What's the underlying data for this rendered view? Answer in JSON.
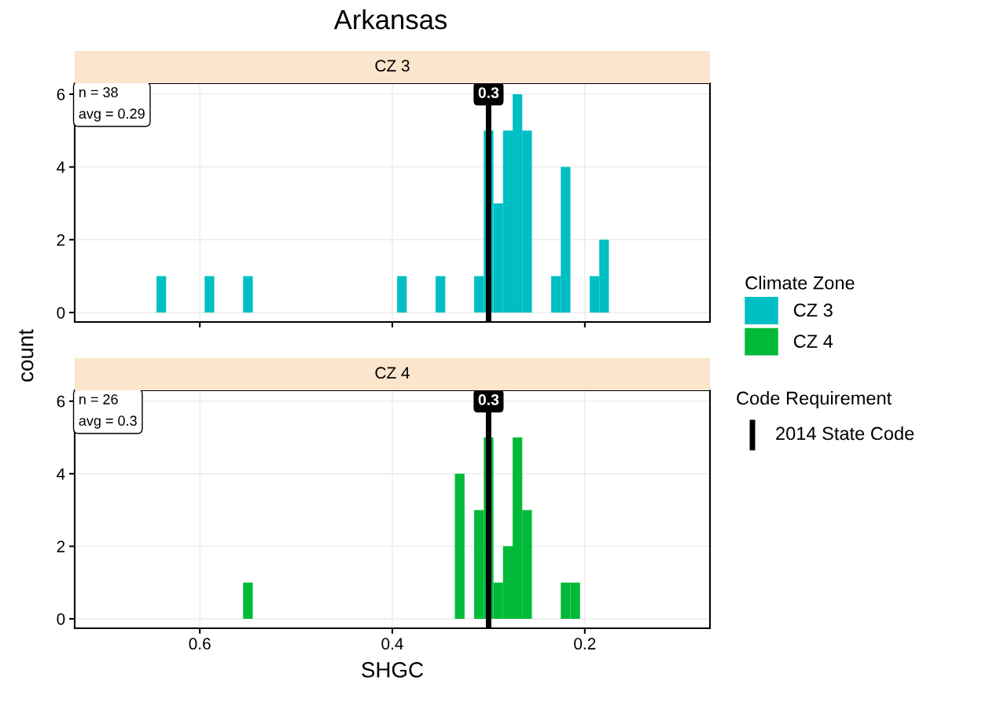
{
  "chart_data": [
    {
      "type": "histogram",
      "title": "Arkansas",
      "subtitle": "CZ 3",
      "ylabel": "count",
      "legend_title": "Climate Zone",
      "legend": "right",
      "grid": true,
      "tick_labels": "y",
      "bins": [
        0.175,
        0.185,
        0.195,
        0.205,
        0.215,
        0.225,
        0.235,
        0.245,
        0.255,
        0.265,
        0.275,
        0.285,
        0.295,
        0.305,
        0.315,
        0.325,
        0.335,
        0.345,
        0.355,
        0.365,
        0.375,
        0.385,
        0.395,
        0.405,
        0.415,
        0.425,
        0.435,
        0.445,
        0.455,
        0.465,
        0.475,
        0.485,
        0.495,
        0.505,
        0.515,
        0.525,
        0.535,
        0.545,
        0.555,
        0.565,
        0.575,
        0.585,
        0.595,
        0.605,
        0.615,
        0.625,
        0.635,
        0.645
      ],
      "series": [
        {
          "name": "CZ 3",
          "color": "#00bfc4",
          "values": [
            2,
            1,
            0,
            0,
            4,
            1,
            0,
            0,
            5,
            6,
            5,
            3,
            5,
            1,
            0,
            0,
            0,
            1,
            0,
            0,
            0,
            1,
            0,
            0,
            0,
            0,
            0,
            0,
            0,
            0,
            0,
            0,
            0,
            0,
            0,
            0,
            0,
            1,
            0,
            0,
            0,
            1,
            0,
            0,
            0,
            0,
            1
          ]
        }
      ],
      "xlim": [
        0.73,
        0.07
      ],
      "xticks": [
        0.6,
        0.4,
        0.2
      ],
      "ylim": [
        -0.26,
        6.3
      ],
      "yticks": [
        0,
        2,
        4,
        6
      ],
      "ref_lines": [
        {
          "axis": "x",
          "value": 0.3,
          "label": "0.3",
          "color": "#000000"
        }
      ],
      "annotations": [
        "n = 38\navg = 0.29",
        "Code Requirement",
        "2014 State Code"
      ]
    },
    {
      "type": "histogram",
      "subtitle": "CZ 4",
      "xlabel": "SHGC",
      "grid": true,
      "bins": [
        0.205,
        0.215,
        0.225,
        0.235,
        0.245,
        0.255,
        0.265,
        0.275,
        0.285,
        0.295,
        0.305,
        0.315,
        0.325,
        0.335,
        0.345,
        0.355,
        0.365,
        0.375,
        0.385,
        0.395,
        0.405,
        0.415,
        0.425,
        0.435,
        0.445,
        0.455,
        0.465,
        0.475,
        0.485,
        0.495,
        0.505,
        0.515,
        0.525,
        0.535,
        0.545,
        0.555
      ],
      "series": [
        {
          "name": "CZ 4",
          "color": "#00ba38",
          "values": [
            1,
            1,
            0,
            0,
            0,
            3,
            5,
            2,
            1,
            5,
            3,
            0,
            4,
            0,
            0,
            0,
            0,
            0,
            0,
            0,
            0,
            0,
            0,
            0,
            0,
            0,
            0,
            0,
            0,
            0,
            0,
            0,
            0,
            0,
            1
          ]
        }
      ],
      "xlim": [
        0.73,
        0.07
      ],
      "xticks": [
        0.6,
        0.4,
        0.2
      ],
      "ylim": [
        -0.26,
        6.3
      ],
      "yticks": [
        0,
        2,
        4,
        6
      ],
      "ref_lines": [
        {
          "axis": "x",
          "value": 0.3,
          "label": "0.3",
          "color": "#000000"
        }
      ],
      "annotations": [
        "n = 26\navg = 0.3"
      ]
    }
  ]
}
